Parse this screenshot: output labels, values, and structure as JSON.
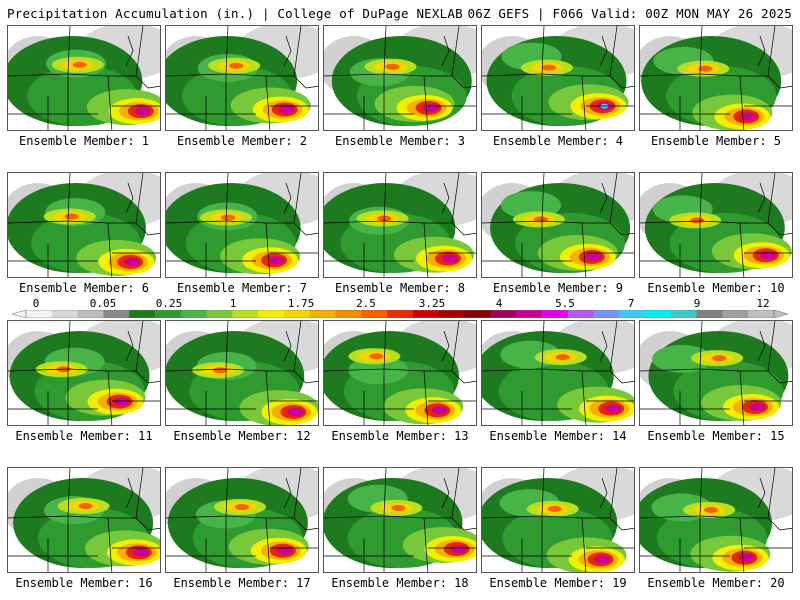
{
  "header": {
    "left": "Precipitation Accumulation (in.) | College of DuPage NEXLAB",
    "right": "06Z GEFS | F066 Valid: 00Z MON MAY 26 2025"
  },
  "scale": {
    "labels": [
      "0",
      "0.05",
      "0.25",
      "1",
      "1.75",
      "2.5",
      "3.25",
      "4",
      "5.5",
      "7",
      "9",
      "12"
    ],
    "colors": [
      "#f4f4f4",
      "#d9d9d9",
      "#bdbdbd",
      "#8a8a8a",
      "#1e7a1e",
      "#2f9a2f",
      "#46b446",
      "#78c83a",
      "#b8e01e",
      "#f0f000",
      "#f8d400",
      "#f8b000",
      "#f88c00",
      "#f86000",
      "#e82800",
      "#d00000",
      "#a80000",
      "#880000",
      "#a0005a",
      "#c80098",
      "#e800e8",
      "#b45af0",
      "#7896f8",
      "#3ccaff",
      "#00f0f0",
      "#40c8c8",
      "#808080",
      "#a0a0a0",
      "#c0c0c0"
    ]
  },
  "members": [
    {
      "label": "Ensemble Member: 1"
    },
    {
      "label": "Ensemble Member: 2"
    },
    {
      "label": "Ensemble Member: 3"
    },
    {
      "label": "Ensemble Member: 4"
    },
    {
      "label": "Ensemble Member: 5"
    },
    {
      "label": "Ensemble Member: 6"
    },
    {
      "label": "Ensemble Member: 7"
    },
    {
      "label": "Ensemble Member: 8"
    },
    {
      "label": "Ensemble Member: 9"
    },
    {
      "label": "Ensemble Member: 10"
    },
    {
      "label": "Ensemble Member: 11"
    },
    {
      "label": "Ensemble Member: 12"
    },
    {
      "label": "Ensemble Member: 13"
    },
    {
      "label": "Ensemble Member: 14"
    },
    {
      "label": "Ensemble Member: 15"
    },
    {
      "label": "Ensemble Member: 16"
    },
    {
      "label": "Ensemble Member: 17"
    },
    {
      "label": "Ensemble Member: 18"
    },
    {
      "label": "Ensemble Member: 19"
    },
    {
      "label": "Ensemble Member: 20"
    }
  ]
}
